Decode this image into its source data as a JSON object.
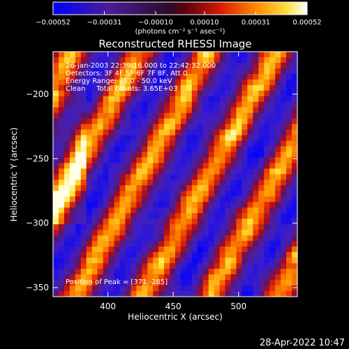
{
  "chart_data": {
    "type": "heatmap",
    "title": "Reconstructed RHESSI Image",
    "xlabel": "Heliocentric X (arcsec)",
    "ylabel": "Heliocentric Y (arcsec)",
    "xlim": [
      358,
      545
    ],
    "ylim": [
      -357,
      -167
    ],
    "x_ticks": [
      400,
      450,
      500
    ],
    "y_ticks": [
      -200,
      -250,
      -300,
      -350
    ],
    "x_tick_labels": [
      "400",
      "450",
      "500"
    ],
    "y_tick_labels": [
      "−200",
      "−250",
      "−300",
      "−350"
    ],
    "colorbar": {
      "min": -0.00052,
      "max": 0.00052,
      "ticks": [
        -0.00052,
        -0.00031,
        -0.0001,
        0.0001,
        0.00031,
        0.00052
      ],
      "tick_labels": [
        "−0.00052",
        "−0.00031",
        "−0.00010",
        "0.00010",
        "0.00031",
        "0.00052"
      ],
      "units_label": "(photons cm⁻² s⁻¹ asec⁻²)",
      "colormap": "blue-purple-red-yellow-white"
    },
    "annotations": [
      "26-Jan-2003 22:39:16.000 to 22:42:32.000",
      "Detectors: 3F 4F 5F 6F 7F 8F, Att 0",
      "Energy Range: 25.0 - 50.0 keV",
      "Clean     Total counts: 3.65E+03"
    ],
    "peak_label": "Position of Peak = [371,-285]",
    "peak_position": [
      371,
      -285
    ],
    "pattern": "diagonal stripes (lower-left to upper-right), bright streaks near left edge",
    "grid": false
  },
  "footer": {
    "timestamp": "28-Apr-2022 10:47"
  },
  "colors": {
    "background": "#000000",
    "foreground": "#ffffff",
    "negative": "#1a1aff",
    "neutral": "#4b1a8c",
    "positive": "#ff3300",
    "peak": "#ffff80"
  }
}
